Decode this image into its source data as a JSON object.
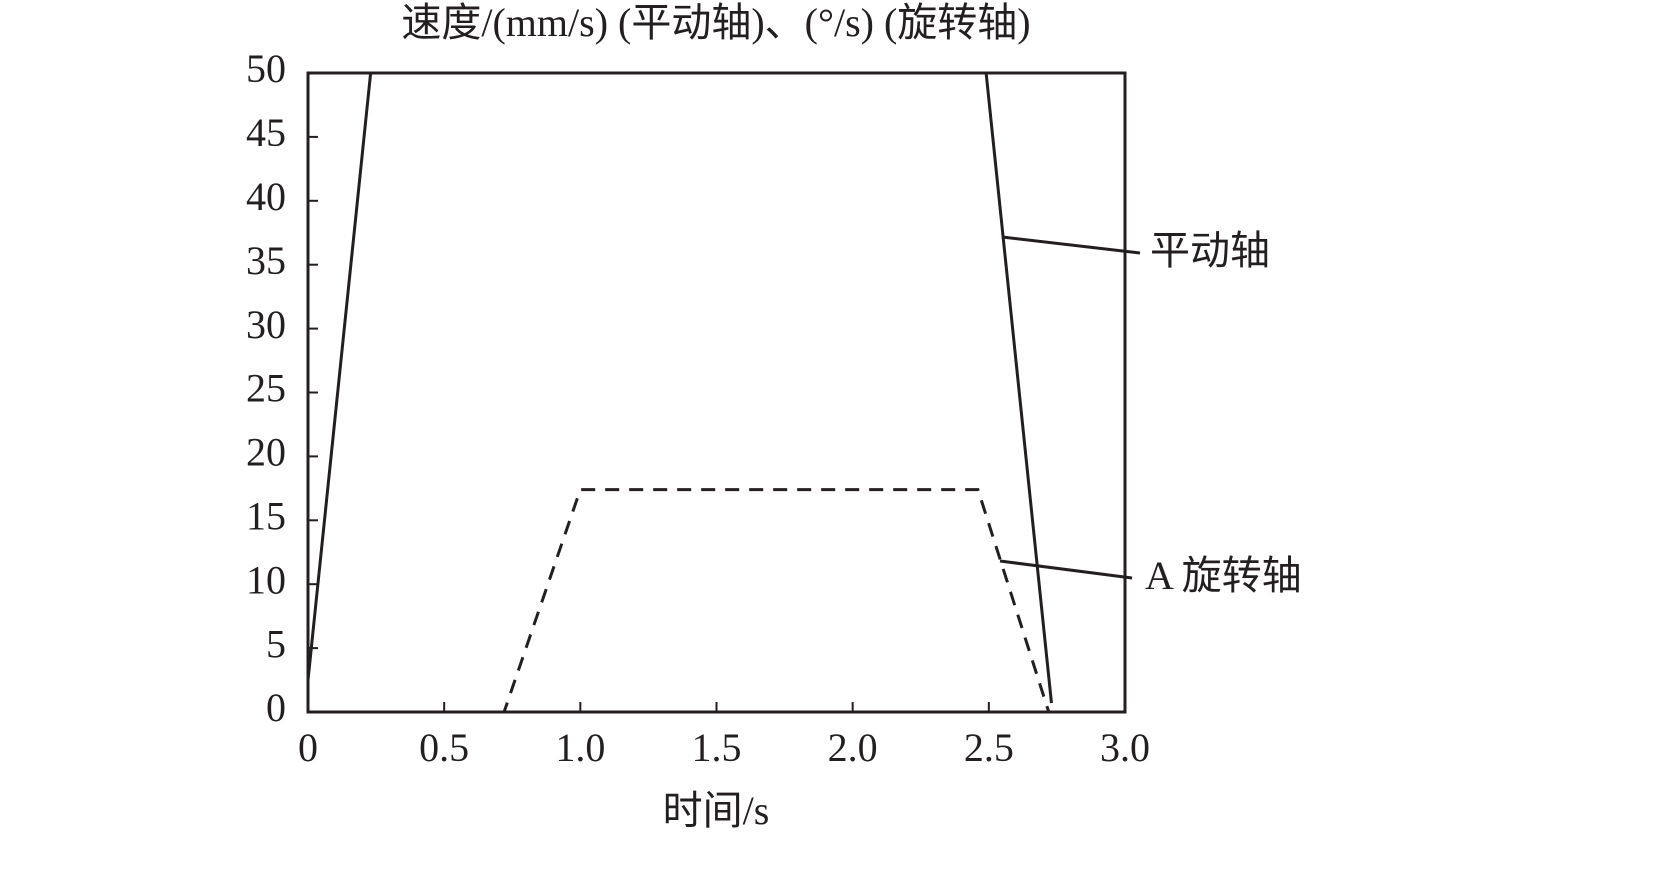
{
  "chart_data": {
    "type": "line",
    "title": "速度/(mm/s) (平动轴)、(°/s) (旋转轴)",
    "x_label": "时间/s",
    "series": [
      {
        "name": "平动轴",
        "color": "#231f20",
        "line_style": "solid",
        "x": [
          0,
          0.23,
          2.49,
          2.73
        ],
        "values": [
          2.5,
          50,
          50,
          0.7
        ]
      },
      {
        "name": "A 旋转轴",
        "color": "#231f20",
        "line_style": "dashed",
        "x": [
          0,
          0.72,
          1.0,
          2.46,
          2.72
        ],
        "values": [
          0,
          0,
          17.4,
          17.4,
          0
        ]
      }
    ],
    "xlim": [
      0,
      3.0
    ],
    "xticks": [
      0,
      0.5,
      {
        "value": 1.0,
        "label": "1.0"
      },
      1.5,
      {
        "value": 2.0,
        "label": "2.0"
      },
      2.5,
      {
        "value": 3.0,
        "label": "3.0"
      }
    ],
    "ylim": [
      0,
      50
    ],
    "yticks": [
      0,
      5,
      10,
      15,
      20,
      25,
      30,
      35,
      40,
      45,
      50
    ],
    "grid": false
  }
}
